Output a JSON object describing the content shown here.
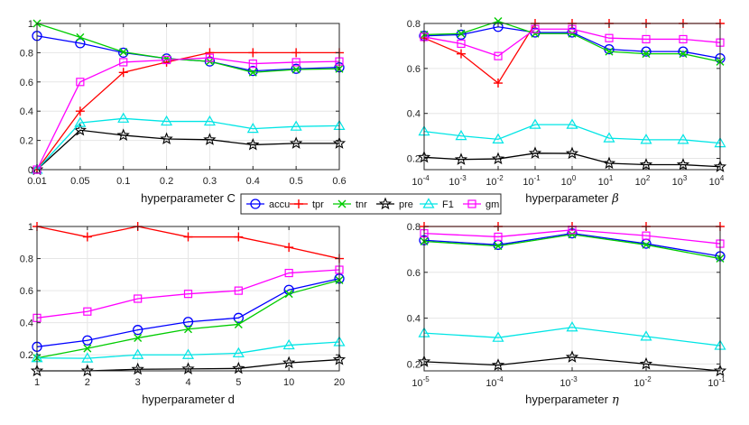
{
  "colors": {
    "accu": "#0000ff",
    "tpr": "#ff0000",
    "tnr": "#00cc00",
    "pre": "#000000",
    "F1": "#00e5e5",
    "gm": "#ff00ff",
    "grid": "#e6e6e6",
    "axis": "#262626"
  },
  "legend": {
    "placement": "center",
    "entries": [
      {
        "key": "accu",
        "label": "accu",
        "marker": "circle"
      },
      {
        "key": "tpr",
        "label": "tpr",
        "marker": "plus"
      },
      {
        "key": "tnr",
        "label": "tnr",
        "marker": "x"
      },
      {
        "key": "pre",
        "label": "pre",
        "marker": "star"
      },
      {
        "key": "F1",
        "label": "F1",
        "marker": "triangle"
      },
      {
        "key": "gm",
        "label": "gm",
        "marker": "square"
      }
    ]
  },
  "chart_data": [
    {
      "id": "c",
      "type": "line",
      "xlabel": "hyperparameter C",
      "x": [
        "0.01",
        "0.05",
        "0.1",
        "0.2",
        "0.3",
        "0.4",
        "0.5",
        "0.6"
      ],
      "ylim": [
        0,
        1
      ],
      "yticks": [
        "0",
        "0.2",
        "0.4",
        "0.6",
        "0.8",
        "1"
      ],
      "ytick_values": [
        0,
        0.2,
        0.4,
        0.6,
        0.8,
        1
      ],
      "series": [
        {
          "name": "accu",
          "values": [
            0.915,
            0.865,
            0.8,
            0.76,
            0.74,
            0.675,
            0.69,
            0.7
          ]
        },
        {
          "name": "tpr",
          "values": [
            0.0,
            0.4,
            0.665,
            0.735,
            0.8,
            0.8,
            0.8,
            0.8
          ]
        },
        {
          "name": "tnr",
          "values": [
            1.0,
            0.905,
            0.805,
            0.76,
            0.74,
            0.665,
            0.685,
            0.69
          ]
        },
        {
          "name": "pre",
          "values": [
            0.0,
            0.27,
            0.235,
            0.21,
            0.205,
            0.17,
            0.18,
            0.18
          ]
        },
        {
          "name": "F1",
          "values": [
            0.0,
            0.32,
            0.35,
            0.33,
            0.33,
            0.28,
            0.295,
            0.3
          ]
        },
        {
          "name": "gm",
          "values": [
            0.0,
            0.6,
            0.735,
            0.75,
            0.765,
            0.725,
            0.735,
            0.74
          ]
        }
      ]
    },
    {
      "id": "beta",
      "type": "line",
      "xlabel": "hyperparameter",
      "xlabel_symbol": "β",
      "x_base": [
        "10",
        "10",
        "10",
        "10",
        "10",
        "10",
        "10",
        "10",
        "10"
      ],
      "x_exp": [
        "-4",
        "-3",
        "-2",
        "-1",
        "0",
        "1",
        "2",
        "3",
        "4"
      ],
      "ylim": [
        0.15,
        0.8
      ],
      "yticks": [
        "0.2",
        "0.4",
        "0.6",
        "0.8"
      ],
      "ytick_values": [
        0.2,
        0.4,
        0.6,
        0.8
      ],
      "series": [
        {
          "name": "accu",
          "values": [
            0.745,
            0.75,
            0.785,
            0.76,
            0.76,
            0.685,
            0.675,
            0.675,
            0.645
          ]
        },
        {
          "name": "tpr",
          "values": [
            0.735,
            0.665,
            0.535,
            0.8,
            0.8,
            0.8,
            0.8,
            0.8,
            0.8
          ]
        },
        {
          "name": "tnr",
          "values": [
            0.75,
            0.755,
            0.81,
            0.755,
            0.755,
            0.675,
            0.665,
            0.665,
            0.63
          ]
        },
        {
          "name": "pre",
          "values": [
            0.205,
            0.195,
            0.198,
            0.223,
            0.222,
            0.178,
            0.172,
            0.172,
            0.163
          ]
        },
        {
          "name": "F1",
          "values": [
            0.32,
            0.3,
            0.285,
            0.35,
            0.35,
            0.29,
            0.283,
            0.283,
            0.268
          ]
        },
        {
          "name": "gm",
          "values": [
            0.74,
            0.71,
            0.655,
            0.775,
            0.775,
            0.735,
            0.73,
            0.73,
            0.715
          ]
        }
      ]
    },
    {
      "id": "d",
      "type": "line",
      "xlabel": "hyperparameter d",
      "x": [
        "1",
        "2",
        "3",
        "4",
        "5",
        "10",
        "20"
      ],
      "ylim": [
        0.1,
        1
      ],
      "yticks": [
        "0.2",
        "0.4",
        "0.6",
        "0.8",
        "1"
      ],
      "ytick_values": [
        0.2,
        0.4,
        0.6,
        0.8,
        1
      ],
      "series": [
        {
          "name": "accu",
          "values": [
            0.25,
            0.29,
            0.355,
            0.405,
            0.43,
            0.605,
            0.675
          ]
        },
        {
          "name": "tpr",
          "values": [
            1.0,
            0.935,
            1.0,
            0.935,
            0.935,
            0.87,
            0.8
          ]
        },
        {
          "name": "tnr",
          "values": [
            0.18,
            0.24,
            0.305,
            0.36,
            0.39,
            0.58,
            0.665
          ]
        },
        {
          "name": "pre",
          "values": [
            0.1,
            0.1,
            0.11,
            0.112,
            0.115,
            0.15,
            0.17
          ]
        },
        {
          "name": "F1",
          "values": [
            0.18,
            0.178,
            0.2,
            0.2,
            0.21,
            0.26,
            0.28
          ]
        },
        {
          "name": "gm",
          "values": [
            0.43,
            0.47,
            0.55,
            0.58,
            0.6,
            0.71,
            0.73
          ]
        }
      ]
    },
    {
      "id": "eta",
      "type": "line",
      "xlabel": "hyperparameter",
      "xlabel_symbol": "η",
      "x_base": [
        "10",
        "10",
        "10",
        "10",
        "10"
      ],
      "x_exp": [
        "-5",
        "-4",
        "-3",
        "-2",
        "-1"
      ],
      "ylim": [
        0.17,
        0.8
      ],
      "yticks": [
        "0.2",
        "0.4",
        "0.6",
        "0.8"
      ],
      "ytick_values": [
        0.2,
        0.4,
        0.6,
        0.8
      ],
      "series": [
        {
          "name": "accu",
          "values": [
            0.74,
            0.72,
            0.77,
            0.725,
            0.67
          ]
        },
        {
          "name": "tpr",
          "values": [
            0.8,
            0.8,
            0.8,
            0.8,
            0.8
          ]
        },
        {
          "name": "tnr",
          "values": [
            0.735,
            0.715,
            0.765,
            0.72,
            0.66
          ]
        },
        {
          "name": "pre",
          "values": [
            0.21,
            0.195,
            0.23,
            0.2,
            0.17
          ]
        },
        {
          "name": "F1",
          "values": [
            0.335,
            0.315,
            0.36,
            0.32,
            0.28
          ]
        },
        {
          "name": "gm",
          "values": [
            0.77,
            0.755,
            0.785,
            0.76,
            0.725
          ]
        }
      ]
    }
  ]
}
